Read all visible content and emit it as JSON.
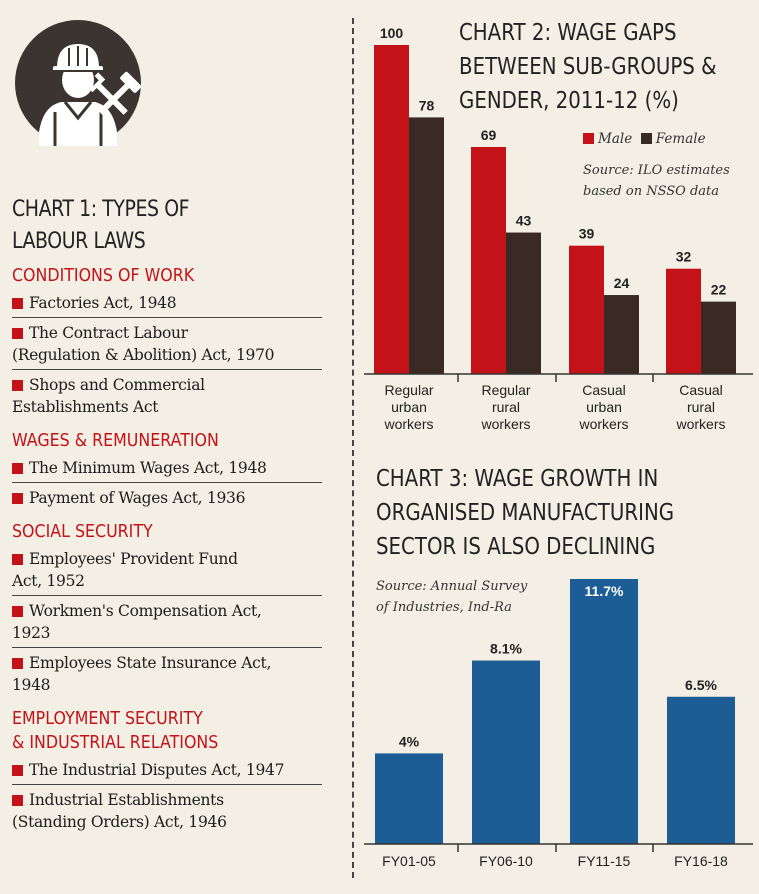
{
  "chart1": {
    "title_lines": [
      "CHART 1: TYPES OF",
      "LABOUR LAWS"
    ],
    "sections": [
      {
        "heading": "CONDITIONS OF WORK",
        "items": [
          [
            "Factories Act, 1948"
          ],
          [
            "The Contract Labour",
            "(Regulation & Abolition) Act, 1970"
          ],
          [
            "Shops and Commercial",
            "Establishments Act"
          ]
        ]
      },
      {
        "heading": "WAGES & REMUNERATION",
        "items": [
          [
            "The Minimum Wages Act, 1948"
          ],
          [
            "Payment of Wages Act, 1936"
          ]
        ]
      },
      {
        "heading": "SOCIAL SECURITY",
        "items": [
          [
            "Employees' Provident Fund",
            "Act, 1952"
          ],
          [
            "Workmen's Compensation Act,",
            "1923"
          ],
          [
            "Employees State Insurance Act,",
            "1948"
          ]
        ]
      },
      {
        "heading_lines": [
          "EMPLOYMENT SECURITY",
          "& INDUSTRIAL RELATIONS"
        ],
        "items": [
          [
            "The Industrial Disputes Act, 1947"
          ],
          [
            "Industrial Establishments",
            "(Standing Orders) Act, 1946"
          ]
        ]
      }
    ]
  },
  "chart_data": [
    {
      "type": "bar",
      "title": "CHART 2: WAGE GAPS BETWEEN SUB-GROUPS & GENDER, 2011-12 (%)",
      "title_lines": [
        "CHART 2: WAGE GAPS",
        "BETWEEN SUB-GROUPS &",
        "GENDER, 2011-12 (%)"
      ],
      "source_lines": [
        "Source: ILO estimates",
        "based on NSSO data"
      ],
      "categories": [
        [
          "Regular",
          "urban",
          "workers"
        ],
        [
          "Regular",
          "rural",
          "workers"
        ],
        [
          "Casual",
          "urban",
          "workers"
        ],
        [
          "Casual",
          "rural",
          "workers"
        ]
      ],
      "series": [
        {
          "name": "Male",
          "color": "#c41219",
          "values": [
            100,
            69,
            39,
            32
          ],
          "labels": [
            "100",
            "69",
            "39",
            "32"
          ]
        },
        {
          "name": "Female",
          "color": "#3a2a25",
          "values": [
            78,
            43,
            24,
            22
          ],
          "labels": [
            "78",
            "43",
            "24",
            "22"
          ]
        }
      ],
      "ylim": [
        0,
        100
      ],
      "legend": "top-right"
    },
    {
      "type": "bar",
      "title": "CHART 3: WAGE GROWTH IN ORGANISED MANUFACTURING SECTOR IS ALSO DECLINING",
      "title_lines": [
        "CHART 3: WAGE GROWTH IN",
        "ORGANISED MANUFACTURING",
        "SECTOR IS ALSO DECLINING"
      ],
      "source_lines": [
        "Source: Annual Survey",
        "of Industries, Ind-Ra"
      ],
      "categories": [
        "FY01-05",
        "FY06-10",
        "FY11-15",
        "FY16-18"
      ],
      "values": [
        4,
        8.1,
        11.7,
        6.5
      ],
      "labels": [
        "4%",
        "8.1%",
        "11.7%",
        "6.5%"
      ],
      "color": "#1d5d96",
      "ylim": [
        0,
        11.7
      ]
    }
  ]
}
